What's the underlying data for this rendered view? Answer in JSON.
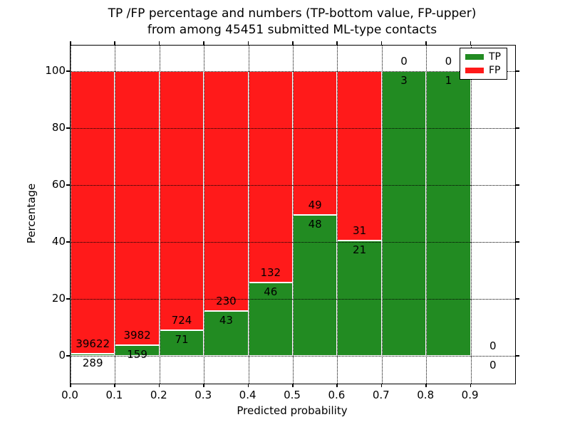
{
  "figure": {
    "title_line1": "TP /FP percentage and numbers (TP-bottom value, FP-upper)",
    "title_line2": "from among 45451 submitted ML-type contacts"
  },
  "chart_data": {
    "type": "bar",
    "stacked": true,
    "title": "TP /FP percentage and numbers (TP-bottom value, FP-upper) from among 45451 submitted ML-type contacts",
    "xlabel": "Predicted probability",
    "ylabel": "Percentage",
    "total_contacts": 45451,
    "bin_width": 0.1,
    "bin_starts": [
      0.0,
      0.1,
      0.2,
      0.3,
      0.4,
      0.5,
      0.6,
      0.7,
      0.8,
      0.9
    ],
    "series": [
      {
        "name": "TP",
        "color": "#228b22",
        "counts": [
          289,
          159,
          71,
          43,
          46,
          48,
          21,
          3,
          1,
          0
        ]
      },
      {
        "name": "FP",
        "color": "#ff1a1a",
        "counts": [
          39622,
          3982,
          724,
          230,
          132,
          49,
          31,
          0,
          0,
          0
        ]
      }
    ],
    "tp_percent_by_bin": [
      0.72,
      3.84,
      8.93,
      15.75,
      25.84,
      49.48,
      40.38,
      100.0,
      100.0,
      null
    ],
    "x_tick_labels": [
      "0.0",
      "0.1",
      "0.2",
      "0.3",
      "0.4",
      "0.5",
      "0.6",
      "0.7",
      "0.8",
      "0.9"
    ],
    "y_ticks": [
      0,
      20,
      40,
      60,
      80,
      100
    ],
    "xlim": [
      0.0,
      1.0
    ],
    "ylim": [
      -9.75,
      109.0
    ],
    "grid": {
      "style": "dotted",
      "color": "#000000",
      "x": true,
      "y": true
    },
    "legend": {
      "position": "upper-right",
      "entries": [
        {
          "label": "TP",
          "color": "#228b22"
        },
        {
          "label": "FP",
          "color": "#ff1a1a"
        }
      ]
    },
    "colors": {
      "background": "#ffffff",
      "text": "#000000",
      "spine": "#000000"
    }
  }
}
